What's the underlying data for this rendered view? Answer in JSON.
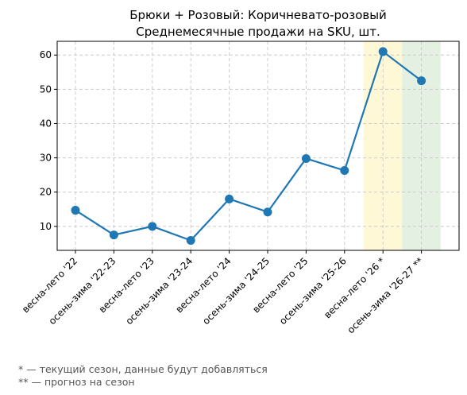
{
  "chart_data": {
    "type": "line",
    "title": [
      "Брюки + Розовый: Коричневато-розовый",
      "Среднемесячные продажи на SKU, шт."
    ],
    "categories": [
      "весна-лето '22",
      "осень-зима '22-23",
      "весна-лето '23",
      "осень-зима '23-24",
      "весна-лето '24",
      "осень-зима '24-25",
      "весна-лето '25",
      "осень-зима '25-26",
      "весна-лето '26 *",
      "осень-зима '26-27 **"
    ],
    "values": [
      14.7,
      7.5,
      10.0,
      5.9,
      18.0,
      14.2,
      29.8,
      26.3,
      61.0,
      52.5
    ],
    "ylim": [
      3,
      64
    ],
    "yticks": [
      10,
      20,
      30,
      40,
      50,
      60
    ],
    "grid": true,
    "highlight_bands": [
      {
        "category": "весна-лето '26 *",
        "color": "#fff8d6"
      },
      {
        "category": "осень-зима '26-27 **",
        "color": "#e4f1e2"
      }
    ],
    "line_color": "#1f77b4"
  },
  "footnotes": {
    "note1": "* — текущий сезон, данные будут добавляться",
    "note2": "** — прогноз на сезон"
  }
}
